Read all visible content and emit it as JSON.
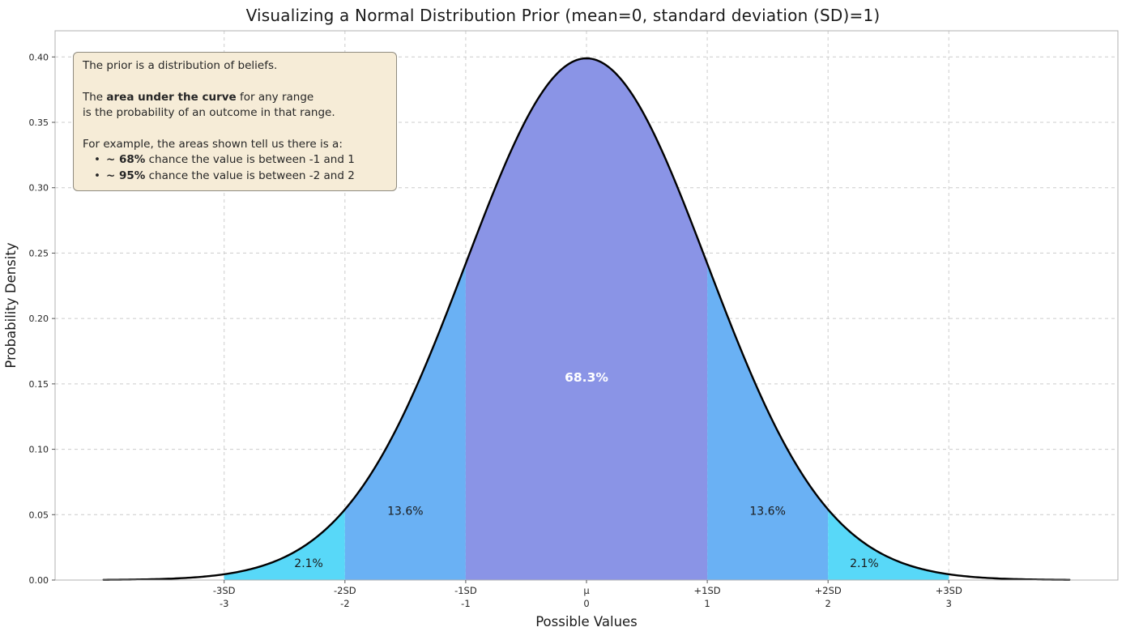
{
  "title": "Visualizing a Normal Distribution Prior (mean=0, standard deviation (SD)=1)",
  "annotation": {
    "para1": "The prior is a distribution of beliefs.",
    "para2_pre": "The ",
    "para2_bold": "area under the curve",
    "para2_post": " for any range",
    "para2_line2": "is the probability of an outcome in that range.",
    "para3": "For example, the areas shown tell us there is a:",
    "bullets": [
      {
        "marker": "•",
        "bold": "~ 68%",
        "text": " chance the value is between -1 and 1"
      },
      {
        "marker": "•",
        "bold": "~ 95%",
        "text": " chance the value is between -2 and 2"
      }
    ]
  },
  "chart_data": {
    "type": "area",
    "distribution": "normal",
    "mean": 0,
    "sd": 1,
    "peak_density": 0.3989,
    "curve_x_range": [
      -4,
      4
    ],
    "xlabel": "Possible Values",
    "ylabel": "Probability Density",
    "xlim": [
      -4.4,
      4.4
    ],
    "ylim": [
      0,
      0.42
    ],
    "grid": true,
    "grid_color": "#cccccc",
    "curve_color": "#000000",
    "frame_color": "#b0b0b0",
    "tick_text_color": "#262626",
    "x_ticks": [
      {
        "value": -3,
        "line1": "-3SD",
        "line2": "-3"
      },
      {
        "value": -2,
        "line1": "-2SD",
        "line2": "-2"
      },
      {
        "value": -1,
        "line1": "-1SD",
        "line2": "-1"
      },
      {
        "value": 0,
        "line1": "μ",
        "line2": "0"
      },
      {
        "value": 1,
        "line1": "+1SD",
        "line2": "1"
      },
      {
        "value": 2,
        "line1": "+2SD",
        "line2": "2"
      },
      {
        "value": 3,
        "line1": "+3SD",
        "line2": "3"
      }
    ],
    "y_tick_labels": [
      "0.00",
      "0.05",
      "0.10",
      "0.15",
      "0.20",
      "0.25",
      "0.30",
      "0.35",
      "0.40"
    ],
    "y_tick_values": [
      0.0,
      0.05,
      0.1,
      0.15,
      0.2,
      0.25,
      0.3,
      0.35,
      0.4
    ],
    "regions": [
      {
        "from": -3,
        "to": -2,
        "color": "#58d8f8",
        "label": "2.1%",
        "label_x": -2.3,
        "label_y": 0.013,
        "label_color": "#1a1a1a",
        "bold": false
      },
      {
        "from": -2,
        "to": -1,
        "color": "#6ab1f4",
        "label": "13.6%",
        "label_x": -1.5,
        "label_y": 0.053,
        "label_color": "#1a1a1a",
        "bold": false
      },
      {
        "from": -1,
        "to": 1,
        "color": "#8a94e6",
        "label": "68.3%",
        "label_x": 0,
        "label_y": 0.155,
        "label_color": "#ffffff",
        "bold": true
      },
      {
        "from": 1,
        "to": 2,
        "color": "#6ab1f4",
        "label": "13.6%",
        "label_x": 1.5,
        "label_y": 0.053,
        "label_color": "#1a1a1a",
        "bold": false
      },
      {
        "from": 2,
        "to": 3,
        "color": "#58d8f8",
        "label": "2.1%",
        "label_x": 2.3,
        "label_y": 0.013,
        "label_color": "#1a1a1a",
        "bold": false
      }
    ],
    "key_points": [
      {
        "x": -3,
        "y": 0.0044
      },
      {
        "x": -2,
        "y": 0.054
      },
      {
        "x": -1,
        "y": 0.242
      },
      {
        "x": 0,
        "y": 0.3989
      },
      {
        "x": 1,
        "y": 0.242
      },
      {
        "x": 2,
        "y": 0.054
      },
      {
        "x": 3,
        "y": 0.0044
      }
    ]
  }
}
